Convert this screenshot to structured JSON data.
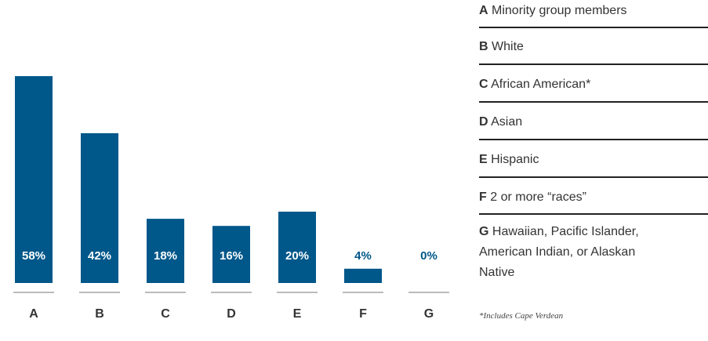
{
  "chart_data": {
    "type": "bar",
    "categories": [
      "A",
      "B",
      "C",
      "D",
      "E",
      "F",
      "G"
    ],
    "values": [
      58,
      42,
      18,
      16,
      20,
      4,
      0
    ],
    "value_labels": [
      "58%",
      "42%",
      "18%",
      "16%",
      "20%",
      "4%",
      "0%"
    ],
    "color": "#00578a",
    "legend": [
      "Minority group members",
      "White",
      "African American*",
      "Asian",
      "Hispanic",
      "2 or more “races”",
      "Hawaiian, Pacific Islander, American Indian, or Alaskan Native"
    ],
    "footnote": "*Includes Cape Verdean"
  }
}
